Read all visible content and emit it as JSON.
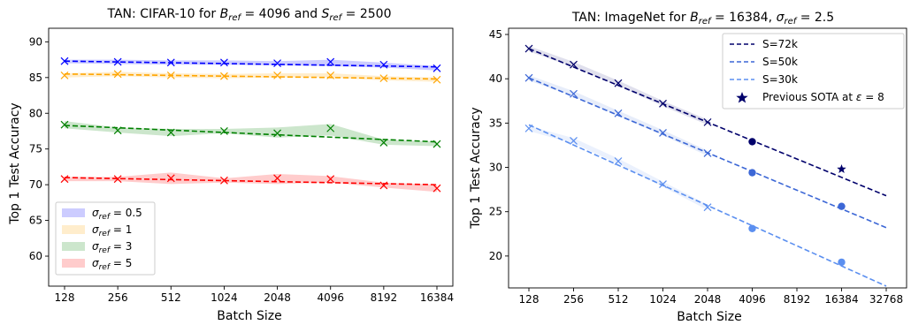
{
  "chart_data": [
    {
      "type": "line",
      "title": "TAN: CIFAR-10 for B_ref = 4096 and S_ref = 2500",
      "xlabel": "Batch Size",
      "ylabel": "Top 1 Test Accuracy",
      "x_scale": "log2",
      "x_ticks": [
        128,
        256,
        512,
        1024,
        2048,
        4096,
        8192,
        16384
      ],
      "xlim": [
        128,
        16384
      ],
      "ylim": [
        55.8,
        91.9
      ],
      "y_ticks": [
        60,
        65,
        70,
        75,
        80,
        85,
        90
      ],
      "legend": "lower-left",
      "series": [
        {
          "name": "σ_ref = 0.5",
          "color": "#0000ff",
          "x": [
            128,
            256,
            512,
            1024,
            2048,
            4096,
            8192,
            16384
          ],
          "y": [
            87.3,
            87.2,
            87.1,
            87.1,
            87.0,
            87.2,
            86.8,
            86.3
          ],
          "band_low": [
            87.0,
            86.9,
            86.8,
            86.8,
            86.7,
            86.6,
            86.4,
            86.0
          ],
          "band_high": [
            87.5,
            87.5,
            87.4,
            87.4,
            87.3,
            87.5,
            87.1,
            86.6
          ],
          "fit": [
            87.3,
            86.5
          ]
        },
        {
          "name": "σ_ref = 1",
          "color": "#ffa500",
          "x": [
            128,
            256,
            512,
            1024,
            2048,
            4096,
            8192,
            16384
          ],
          "y": [
            85.3,
            85.5,
            85.3,
            85.2,
            85.3,
            85.3,
            84.9,
            84.7
          ],
          "band_low": [
            85.0,
            85.2,
            85.0,
            84.9,
            85.0,
            85.0,
            84.6,
            84.4
          ],
          "band_high": [
            85.6,
            85.8,
            85.6,
            85.5,
            85.6,
            85.6,
            85.2,
            85.0
          ],
          "fit": [
            85.5,
            84.8
          ]
        },
        {
          "name": "σ_ref = 3",
          "color": "#008000",
          "x": [
            128,
            256,
            512,
            1024,
            2048,
            4096,
            8192,
            16384
          ],
          "y": [
            78.4,
            77.6,
            77.3,
            77.5,
            77.2,
            77.9,
            75.9,
            75.7
          ],
          "band_low": [
            77.9,
            77.3,
            76.8,
            77.2,
            76.6,
            76.9,
            75.6,
            75.4
          ],
          "band_high": [
            78.9,
            78.0,
            77.8,
            77.8,
            78.0,
            78.5,
            76.3,
            76.0
          ],
          "fit": [
            78.3,
            76.0
          ]
        },
        {
          "name": "σ_ref = 5",
          "color": "#ff0000",
          "x": [
            128,
            256,
            512,
            1024,
            2048,
            4096,
            8192,
            16384
          ],
          "y": [
            70.8,
            70.8,
            70.9,
            70.6,
            70.9,
            70.8,
            69.9,
            69.5
          ],
          "band_low": [
            70.5,
            70.5,
            70.1,
            70.3,
            70.1,
            70.3,
            69.6,
            69.0
          ],
          "band_high": [
            71.1,
            71.1,
            71.7,
            70.9,
            71.5,
            71.2,
            70.3,
            70.0
          ],
          "fit": [
            71.0,
            70.0
          ]
        }
      ]
    },
    {
      "type": "line",
      "title": "TAN: ImageNet for B_ref = 16384, σ_ref = 2.5",
      "xlabel": "Batch Size",
      "ylabel": "Top 1 Test Accuracy",
      "x_scale": "log2",
      "x_ticks": [
        128,
        256,
        512,
        1024,
        2048,
        4096,
        8192,
        16384,
        32768
      ],
      "xlim": [
        128,
        32768
      ],
      "ylim": [
        16.4,
        45.7
      ],
      "y_ticks": [
        20,
        25,
        30,
        35,
        40,
        45
      ],
      "legend": "top-right",
      "series": [
        {
          "name": "S=72k",
          "color": "#00006b",
          "x": [
            128,
            256,
            512,
            1024,
            2048
          ],
          "y": [
            43.4,
            41.6,
            39.5,
            37.2,
            35.1
          ],
          "fit_x": [
            128,
            32768
          ],
          "fit_y": [
            43.4,
            26.8
          ],
          "predicted_x": [
            4096
          ],
          "predicted_y": [
            32.9
          ]
        },
        {
          "name": "S=50k",
          "color": "#3c67d6",
          "x": [
            128,
            256,
            512,
            1024,
            2048
          ],
          "y": [
            40.1,
            38.3,
            36.1,
            33.9,
            31.6
          ],
          "fit_x": [
            128,
            32768
          ],
          "fit_y": [
            40.1,
            23.2
          ],
          "predicted_x": [
            4096,
            16384
          ],
          "predicted_y": [
            29.4,
            25.6
          ]
        },
        {
          "name": "S=30k",
          "color": "#5b8ff0",
          "x": [
            128,
            256,
            512,
            1024,
            2048
          ],
          "y": [
            34.4,
            33.0,
            30.7,
            28.1,
            25.5
          ],
          "fit_x": [
            128,
            32768
          ],
          "fit_y": [
            34.8,
            16.6
          ],
          "predicted_x": [
            4096,
            16384
          ],
          "predicted_y": [
            23.1,
            19.3
          ]
        },
        {
          "name": "Previous SOTA at ε = 8",
          "color": "#00006b",
          "type": "star",
          "x": [
            16384
          ],
          "y": [
            29.8
          ]
        }
      ]
    }
  ],
  "panels": [
    {
      "title_prefix": "TAN: CIFAR-10 for ",
      "title_b": "B",
      "title_b_sub": "ref",
      "title_eq1": " = 4096 and ",
      "title_s": "S",
      "title_s_sub": "ref",
      "title_eq2": " = 2500",
      "legend": [
        {
          "sym": "σ",
          "sub": "ref",
          "val": " = 0.5"
        },
        {
          "sym": "σ",
          "sub": "ref",
          "val": " = 1"
        },
        {
          "sym": "σ",
          "sub": "ref",
          "val": " = 3"
        },
        {
          "sym": "σ",
          "sub": "ref",
          "val": " = 5"
        }
      ]
    },
    {
      "title_prefix": "TAN: ImageNet for ",
      "title_b": "B",
      "title_b_sub": "ref",
      "title_eq1": " = 16384, ",
      "title_s": "σ",
      "title_s_sub": "ref",
      "title_eq2": " = 2.5",
      "legend": [
        {
          "text": "S=72k"
        },
        {
          "text": "S=50k"
        },
        {
          "text": "S=30k"
        },
        {
          "text": "Previous SOTA at ",
          "sym": "ε",
          "val": " = 8"
        }
      ]
    }
  ]
}
